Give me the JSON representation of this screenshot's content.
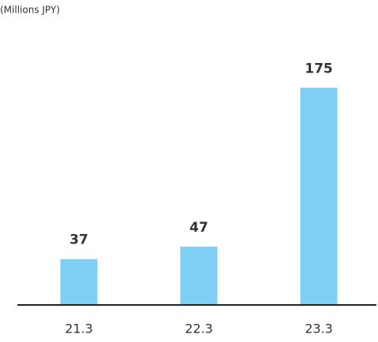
{
  "chart_data": {
    "type": "bar",
    "title": "(Millions JPY)",
    "categories": [
      "21.3",
      "22.3",
      "23.3"
    ],
    "values": [
      37,
      47,
      175
    ],
    "color": "#7fcff5",
    "ylim": [
      0,
      200
    ]
  }
}
